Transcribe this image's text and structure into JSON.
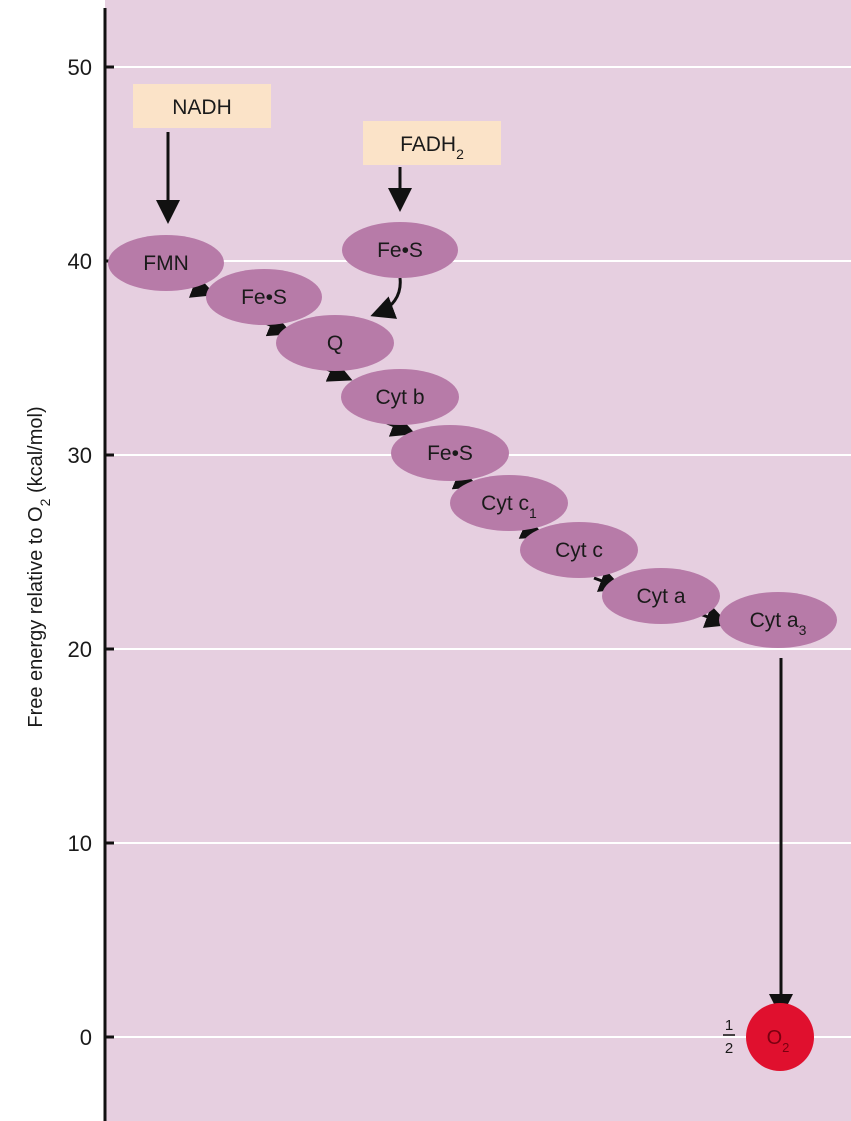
{
  "axis": {
    "title_main": "Free energy relative to O",
    "title_sub": "2",
    "title_unit": " (kcal/mol)",
    "ticks": [
      "0",
      "10",
      "20",
      "30",
      "40",
      "50"
    ]
  },
  "donors": {
    "nadh": "NADH",
    "fadh_main": "FADH",
    "fadh_sub": "2"
  },
  "carriers": [
    {
      "main": "FMN",
      "sub": ""
    },
    {
      "main": "Fe•S",
      "sub": ""
    },
    {
      "main": "Q",
      "sub": ""
    },
    {
      "main": "Cyt b",
      "sub": ""
    },
    {
      "main": "Fe•S",
      "sub": ""
    },
    {
      "main": "Cyt c",
      "sub": "1"
    },
    {
      "main": "Cyt c",
      "sub": ""
    },
    {
      "main": "Cyt a",
      "sub": ""
    },
    {
      "main": "Cyt a",
      "sub": "3"
    }
  ],
  "fad_carrier": {
    "main": "Fe•S"
  },
  "acceptor": {
    "frac_num": "1",
    "frac_den": "2",
    "main": "O",
    "sub": "2"
  },
  "colors": {
    "background": "#e6cfe0",
    "gridline": "#ffffff",
    "carrier": "#b77ba8",
    "donor_box": "#fbe3c8",
    "acceptor": "#e0102e"
  }
}
